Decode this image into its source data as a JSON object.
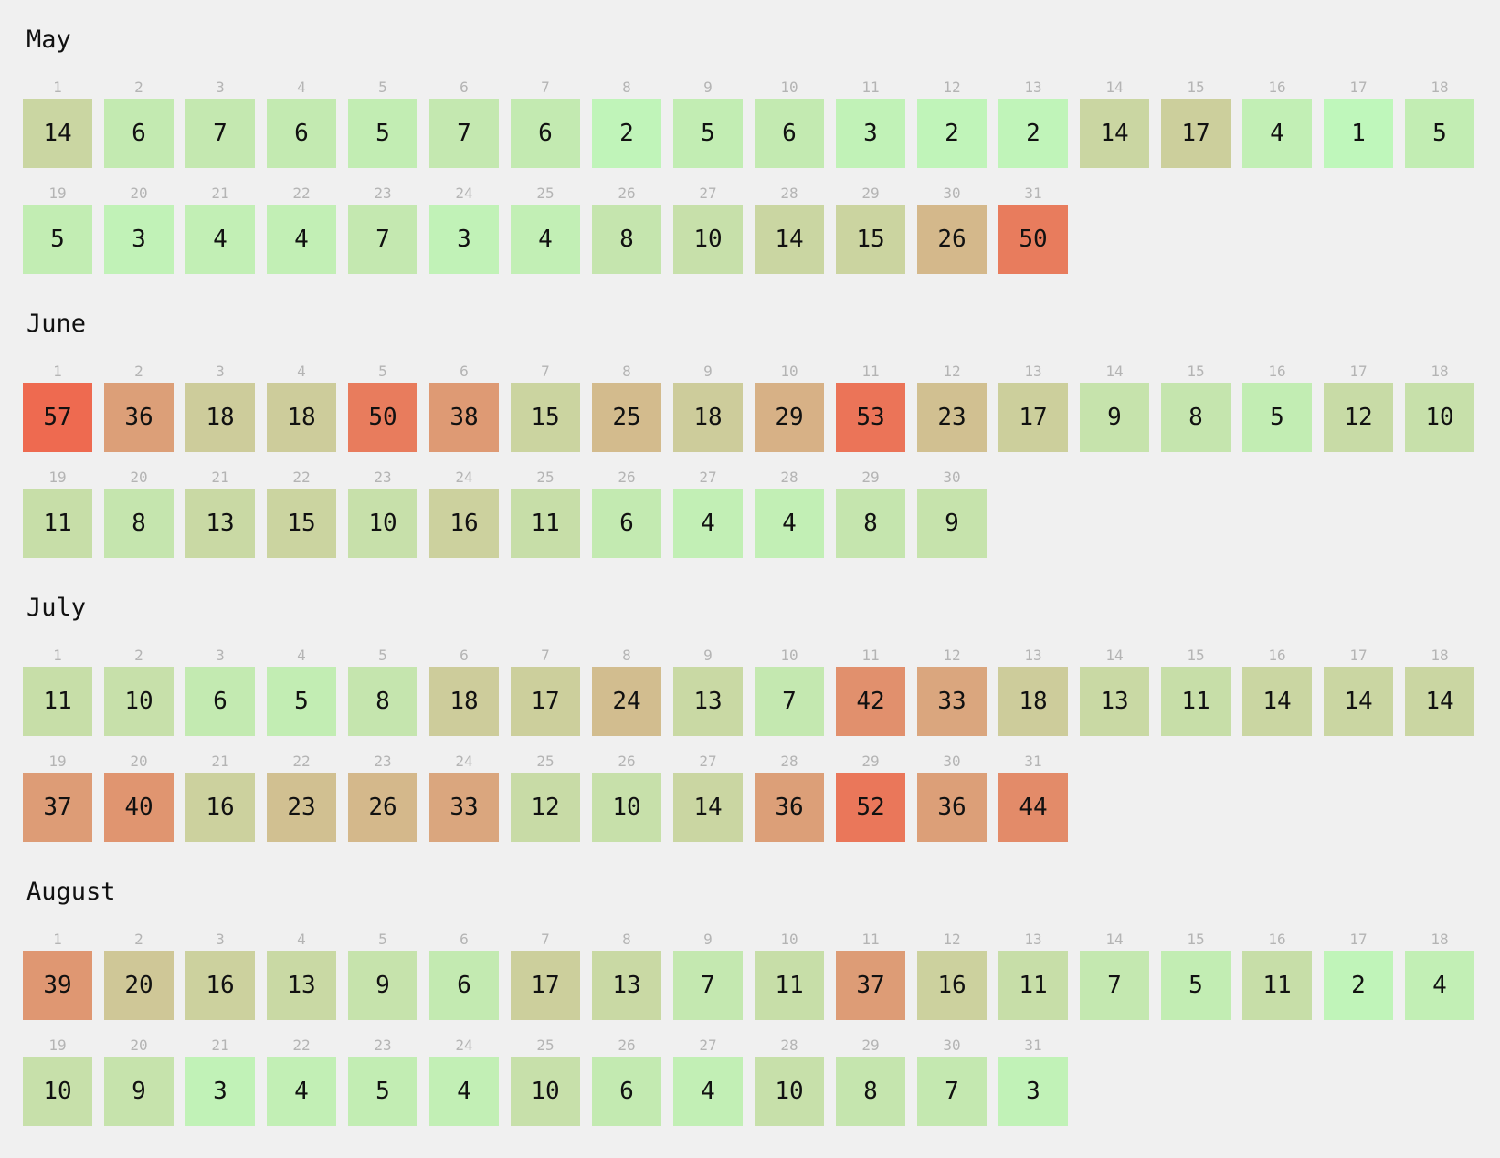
{
  "chart_data": {
    "type": "heatmap",
    "color_scale": {
      "low": "#bff7bb",
      "high": "#ee6a50"
    },
    "value_range": [
      1,
      57
    ],
    "months": [
      {
        "name": "May",
        "values": [
          14,
          6,
          7,
          6,
          5,
          7,
          6,
          2,
          5,
          6,
          3,
          2,
          2,
          14,
          17,
          4,
          1,
          5,
          5,
          3,
          4,
          4,
          7,
          3,
          4,
          8,
          10,
          14,
          15,
          26,
          50
        ]
      },
      {
        "name": "June",
        "values": [
          57,
          36,
          18,
          18,
          50,
          38,
          15,
          25,
          18,
          29,
          53,
          23,
          17,
          9,
          8,
          5,
          12,
          10,
          11,
          8,
          13,
          15,
          10,
          16,
          11,
          6,
          4,
          4,
          8,
          9
        ]
      },
      {
        "name": "July",
        "values": [
          11,
          10,
          6,
          5,
          8,
          18,
          17,
          24,
          13,
          7,
          42,
          33,
          18,
          13,
          11,
          14,
          14,
          14,
          37,
          40,
          16,
          23,
          26,
          33,
          12,
          10,
          14,
          36,
          52,
          36,
          44
        ]
      },
      {
        "name": "August",
        "values": [
          39,
          20,
          16,
          13,
          9,
          6,
          17,
          13,
          7,
          11,
          37,
          16,
          11,
          7,
          5,
          11,
          2,
          4,
          10,
          9,
          3,
          4,
          5,
          4,
          10,
          6,
          4,
          10,
          8,
          7,
          3
        ]
      }
    ]
  }
}
